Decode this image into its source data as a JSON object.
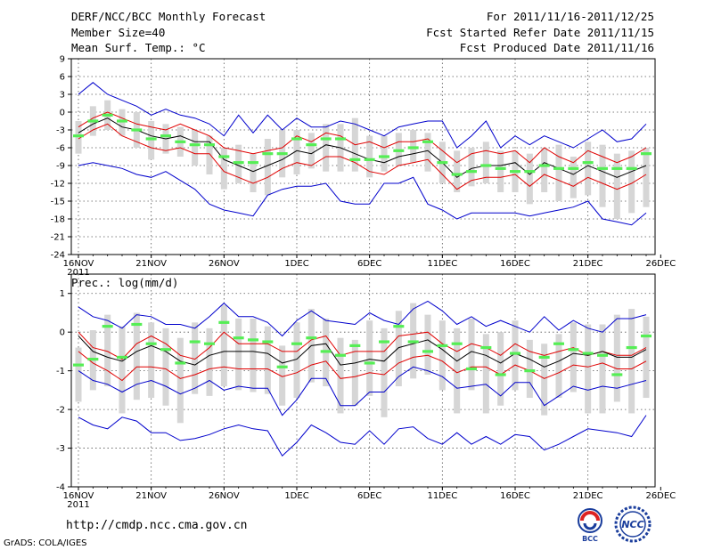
{
  "header": {
    "title": "DERF/NCC/BCC Monthly Forecast",
    "member_size": "Member Size=40",
    "variable": "Mean Surf. Temp.: °C",
    "period": "For 2011/11/16-2011/12/25",
    "started": "Fcst Started Refer Date 2011/11/15",
    "produced": "Fcst Produced Date 2011/11/16"
  },
  "precip_label": "Prec.: log(mm/d)",
  "footer": {
    "url": "http://cmdp.ncc.cma.gov.cn",
    "grads": "GrADS: COLA/IGES"
  },
  "logos": {
    "bcc": "BCC",
    "ncc": "NCC"
  },
  "colors": {
    "envelope": "#0000cc",
    "spread": "#e00000",
    "mean": "#000000",
    "obs": "#55ee55",
    "bars": "#d6d6d6"
  },
  "chart_data": [
    {
      "type": "line",
      "title": "Mean Surf. Temp.: °C",
      "x_labels": [
        "16NOV",
        "21NOV",
        "26NOV",
        "1DEC",
        "6DEC",
        "11DEC",
        "16DEC",
        "21DEC",
        "26DEC"
      ],
      "x_year": "2011",
      "ylim": [
        -24,
        9
      ],
      "yticks": [
        9,
        6,
        3,
        0,
        -3,
        -6,
        -9,
        -12,
        -15,
        -18,
        -21,
        -24
      ],
      "series": [
        {
          "name": "max",
          "values": [
            3,
            5,
            3,
            2,
            1,
            -0.5,
            0.5,
            -0.5,
            -1,
            -2,
            -4,
            -0.5,
            -3.5,
            -0.5,
            -3,
            -1,
            -2.5,
            -2.5,
            -1.5,
            -2,
            -3,
            -4,
            -2.5,
            -2,
            -1.5,
            -1.5,
            -6,
            -4,
            -1.5,
            -6,
            -4,
            -5.5,
            -4,
            -5,
            -6,
            -4.5,
            -3,
            -5,
            -4.5,
            -2
          ]
        },
        {
          "name": "upper",
          "values": [
            -2.5,
            -1,
            0,
            -1,
            -2,
            -2.5,
            -3,
            -2,
            -3,
            -4,
            -6,
            -6.5,
            -7,
            -6.5,
            -6,
            -4,
            -5,
            -3.5,
            -4,
            -5.5,
            -5,
            -6,
            -5,
            -5,
            -4.5,
            -6.5,
            -8.5,
            -7,
            -6.5,
            -7,
            -6.5,
            -8.5,
            -6,
            -7.5,
            -8.5,
            -6.5,
            -7.5,
            -8.5,
            -7.5,
            -6
          ]
        },
        {
          "name": "mean",
          "values": [
            -3.5,
            -2,
            -1,
            -2.5,
            -3,
            -4,
            -4.5,
            -4,
            -5,
            -5,
            -8,
            -9,
            -10,
            -9,
            -8,
            -6.5,
            -7,
            -5.5,
            -6,
            -7,
            -8,
            -8.5,
            -7.5,
            -7,
            -6.5,
            -8.5,
            -11,
            -9.5,
            -9,
            -9,
            -8.5,
            -10.5,
            -8.5,
            -9.5,
            -10.5,
            -9,
            -10,
            -11,
            -10,
            -9
          ]
        },
        {
          "name": "lower",
          "values": [
            -4.5,
            -3,
            -2,
            -4,
            -5,
            -6,
            -6.5,
            -6,
            -7,
            -7,
            -10,
            -11,
            -12,
            -11,
            -9.5,
            -8.5,
            -9,
            -7.5,
            -7.5,
            -8.5,
            -10,
            -10.5,
            -9,
            -8.5,
            -8,
            -10.5,
            -13,
            -11.5,
            -11,
            -11,
            -10.5,
            -12.5,
            -10.5,
            -11.5,
            -12.5,
            -11,
            -12,
            -13,
            -12,
            -10.5
          ]
        },
        {
          "name": "min",
          "values": [
            -9,
            -8.5,
            -9,
            -9.5,
            -10.5,
            -11,
            -10,
            -11.5,
            -13,
            -15.5,
            -16.5,
            -17,
            -17.5,
            -14,
            -13,
            -12.5,
            -12.5,
            -12,
            -15,
            -15.5,
            -15.5,
            -12,
            -12,
            -11,
            -15.5,
            -16.5,
            -18,
            -17,
            -17,
            -17,
            -17,
            -17.5,
            -17,
            -16.5,
            -16,
            -15,
            -18,
            -18.5,
            -19,
            -17
          ]
        }
      ],
      "observed": [
        -4,
        -1.5,
        -0.5,
        -1.5,
        -3,
        -4.5,
        -4,
        -5,
        -5.5,
        -5.5,
        -7.5,
        -8.5,
        -8.5,
        -7,
        -7,
        -4.5,
        -5.5,
        -4.5,
        -4.5,
        -8,
        -8,
        -7.5,
        -6.5,
        -6,
        -5,
        -8.5,
        -10.5,
        -10,
        -9,
        -9.5,
        -10,
        -10,
        -9,
        -9.5,
        -9.5,
        -8.5,
        -9.5,
        -9.5,
        -9.5,
        -7
      ],
      "bars": [
        [
          -7,
          -1.5
        ],
        [
          -4,
          1
        ],
        [
          -3,
          2
        ],
        [
          -4,
          0.5
        ],
        [
          -6,
          0
        ],
        [
          -8,
          -1.5
        ],
        [
          -7,
          -2
        ],
        [
          -7.5,
          -2.5
        ],
        [
          -9,
          -3
        ],
        [
          -10.5,
          -4
        ],
        [
          -13,
          -6
        ],
        [
          -12,
          -5.5
        ],
        [
          -13.5,
          -7
        ],
        [
          -14,
          -4.5
        ],
        [
          -11,
          -3
        ],
        [
          -10.5,
          -3
        ],
        [
          -9.5,
          -3.5
        ],
        [
          -10,
          -2
        ],
        [
          -10,
          -2
        ],
        [
          -10,
          -1
        ],
        [
          -11,
          -4
        ],
        [
          -10,
          -4
        ],
        [
          -9,
          -3.5
        ],
        [
          -8.5,
          -3
        ],
        [
          -10,
          -3.5
        ],
        [
          -12,
          -5
        ],
        [
          -13.5,
          -6.5
        ],
        [
          -12.5,
          -6
        ],
        [
          -12,
          -5
        ],
        [
          -13.5,
          -6.5
        ],
        [
          -13.5,
          -6.5
        ],
        [
          -15.5,
          -7
        ],
        [
          -13.5,
          -6
        ],
        [
          -15,
          -5.5
        ],
        [
          -14.5,
          -7.5
        ],
        [
          -14,
          -5
        ],
        [
          -16,
          -5.5
        ],
        [
          -18,
          -7
        ],
        [
          -17,
          -6.5
        ],
        [
          -16,
          -6
        ]
      ]
    },
    {
      "type": "line",
      "title": "Prec.: log(mm/d)",
      "x_labels": [
        "16NOV",
        "21NOV",
        "26NOV",
        "1DEC",
        "6DEC",
        "11DEC",
        "16DEC",
        "21DEC",
        "26DEC"
      ],
      "x_year": "2011",
      "ylim": [
        -4,
        1.5
      ],
      "yticks": [
        1,
        0,
        -1,
        -2,
        -3,
        -4
      ],
      "series": [
        {
          "name": "max",
          "values": [
            0.65,
            0.4,
            0.3,
            0.1,
            0.45,
            0.4,
            0.2,
            0.2,
            0.1,
            0.4,
            0.75,
            0.4,
            0.4,
            0.25,
            -0.1,
            0.3,
            0.55,
            0.3,
            0.25,
            0.2,
            0.5,
            0.3,
            0.2,
            0.6,
            0.8,
            0.55,
            0.2,
            0.4,
            0.15,
            0.3,
            0.15,
            0.0,
            0.4,
            0.05,
            0.3,
            0.1,
            0.0,
            0.35,
            0.35,
            0.45
          ]
        },
        {
          "name": "upper",
          "values": [
            0.0,
            -0.4,
            -0.5,
            -0.7,
            -0.3,
            -0.1,
            -0.3,
            -0.6,
            -0.7,
            -0.4,
            0.0,
            -0.3,
            -0.3,
            -0.3,
            -0.5,
            -0.5,
            -0.2,
            -0.1,
            -0.6,
            -0.5,
            -0.5,
            -0.5,
            -0.1,
            -0.05,
            0.0,
            -0.3,
            -0.5,
            -0.3,
            -0.4,
            -0.6,
            -0.3,
            -0.5,
            -0.6,
            -0.5,
            -0.4,
            -0.6,
            -0.5,
            -0.6,
            -0.6,
            -0.4
          ]
        },
        {
          "name": "mean",
          "values": [
            -0.1,
            -0.5,
            -0.65,
            -0.75,
            -0.5,
            -0.35,
            -0.5,
            -0.75,
            -0.85,
            -0.6,
            -0.5,
            -0.5,
            -0.5,
            -0.55,
            -0.8,
            -0.7,
            -0.35,
            -0.3,
            -0.85,
            -0.8,
            -0.7,
            -0.75,
            -0.4,
            -0.3,
            -0.2,
            -0.45,
            -0.75,
            -0.5,
            -0.6,
            -0.8,
            -0.55,
            -0.7,
            -0.9,
            -0.75,
            -0.55,
            -0.6,
            -0.5,
            -0.65,
            -0.65,
            -0.45
          ]
        },
        {
          "name": "lower",
          "values": [
            -0.5,
            -0.8,
            -1.0,
            -1.25,
            -0.9,
            -0.9,
            -0.95,
            -1.2,
            -1.1,
            -0.95,
            -0.9,
            -0.95,
            -0.95,
            -0.95,
            -1.15,
            -1.05,
            -0.85,
            -0.75,
            -1.2,
            -1.15,
            -1.05,
            -1.1,
            -0.8,
            -0.65,
            -0.6,
            -0.75,
            -1.05,
            -0.9,
            -0.9,
            -1.1,
            -0.85,
            -1.0,
            -1.2,
            -1.05,
            -0.85,
            -0.9,
            -0.8,
            -0.95,
            -0.95,
            -0.75
          ]
        },
        {
          "name": "min",
          "values": [
            -1.0,
            -1.25,
            -1.35,
            -1.55,
            -1.35,
            -1.25,
            -1.4,
            -1.6,
            -1.45,
            -1.25,
            -1.5,
            -1.4,
            -1.45,
            -1.45,
            -2.15,
            -1.75,
            -1.2,
            -1.2,
            -1.9,
            -1.9,
            -1.55,
            -1.55,
            -1.15,
            -0.9,
            -1.0,
            -1.15,
            -1.45,
            -1.4,
            -1.35,
            -1.65,
            -1.3,
            -1.3,
            -1.9,
            -1.65,
            -1.4,
            -1.5,
            -1.4,
            -1.45,
            -1.35,
            -1.25
          ]
        },
        {
          "name": "absmin",
          "values": [
            -2.2,
            -2.4,
            -2.5,
            -2.2,
            -2.3,
            -2.6,
            -2.6,
            -2.8,
            -2.75,
            -2.65,
            -2.5,
            -2.4,
            -2.5,
            -2.55,
            -3.2,
            -2.85,
            -2.4,
            -2.6,
            -2.85,
            -2.9,
            -2.55,
            -2.9,
            -2.5,
            -2.45,
            -2.75,
            -2.9,
            -2.6,
            -2.9,
            -2.7,
            -2.9,
            -2.65,
            -2.7,
            -3.05,
            -2.9,
            -2.7,
            -2.5,
            -2.55,
            -2.6,
            -2.7,
            -2.15
          ]
        }
      ],
      "observed": [
        -0.85,
        -0.7,
        0.15,
        -0.65,
        0.2,
        -0.3,
        -0.45,
        -0.8,
        -0.25,
        -0.3,
        0.25,
        -0.15,
        -0.2,
        -0.25,
        -0.9,
        -0.3,
        -0.15,
        -0.5,
        -0.6,
        -0.35,
        -0.8,
        -0.25,
        0.15,
        -0.25,
        -0.5,
        -0.35,
        -0.3,
        -0.95,
        -0.4,
        -1.1,
        -0.55,
        -1.0,
        -0.65,
        -0.3,
        -0.45,
        -0.55,
        -0.6,
        -1.1,
        -0.4,
        -0.1
      ],
      "bars": [
        [
          -1.8,
          -0.4
        ],
        [
          -1.5,
          0.05
        ],
        [
          -1.4,
          0.45
        ],
        [
          -2.1,
          0.15
        ],
        [
          -1.75,
          0.5
        ],
        [
          -1.7,
          0.25
        ],
        [
          -1.9,
          0.1
        ],
        [
          -2.35,
          -0.15
        ],
        [
          -1.6,
          0.25
        ],
        [
          -1.65,
          0.1
        ],
        [
          -1.4,
          0.7
        ],
        [
          -1.5,
          0.35
        ],
        [
          -1.55,
          0.35
        ],
        [
          -1.6,
          0.15
        ],
        [
          -1.9,
          -0.35
        ],
        [
          -1.7,
          0.25
        ],
        [
          -1.3,
          0.6
        ],
        [
          -1.4,
          0.35
        ],
        [
          -2.1,
          -0.15
        ],
        [
          -1.9,
          -0.2
        ],
        [
          -1.65,
          0.3
        ],
        [
          -2.2,
          0.1
        ],
        [
          -1.4,
          0.55
        ],
        [
          -1.2,
          0.75
        ],
        [
          -1.1,
          0.45
        ],
        [
          -1.5,
          0.3
        ],
        [
          -2.1,
          0.1
        ],
        [
          -1.5,
          0.35
        ],
        [
          -2.1,
          -0.05
        ],
        [
          -1.9,
          0.0
        ],
        [
          -1.5,
          0.3
        ],
        [
          -1.7,
          -0.2
        ],
        [
          -2.15,
          -0.3
        ],
        [
          -1.7,
          -0.05
        ],
        [
          -1.55,
          0.25
        ],
        [
          -2.1,
          0.2
        ],
        [
          -2.1,
          0.2
        ],
        [
          -1.8,
          0.45
        ],
        [
          -2.1,
          0.6
        ],
        [
          -1.7,
          0.4
        ]
      ]
    }
  ]
}
